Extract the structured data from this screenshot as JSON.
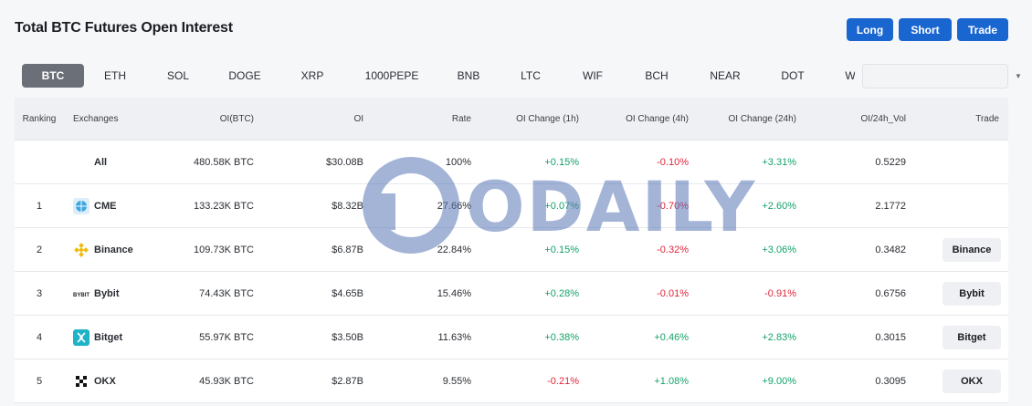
{
  "page": {
    "title": "Total BTC Futures Open Interest"
  },
  "actions": {
    "long": "Long",
    "short": "Short",
    "trade": "Trade"
  },
  "tabs": [
    "BTC",
    "ETH",
    "SOL",
    "DOGE",
    "XRP",
    "1000PEPE",
    "BNB",
    "LTC",
    "WIF",
    "BCH",
    "NEAR",
    "DOT",
    "W"
  ],
  "active_tab": "BTC",
  "search": {
    "value": "",
    "placeholder": ""
  },
  "columns": {
    "ranking": "Ranking",
    "exchanges": "Exchanges",
    "oi_btc": "OI(BTC)",
    "oi": "OI",
    "rate": "Rate",
    "oi_1h": "OI Change (1h)",
    "oi_4h": "OI Change (4h)",
    "oi_24h": "OI Change (24h)",
    "oi_vol": "OI/24h_Vol",
    "trade": "Trade"
  },
  "rows": [
    {
      "rank": "",
      "exchange": "All",
      "oi_btc": "480.58K BTC",
      "oi": "$30.08B",
      "rate": "100%",
      "oi_1h": "+0.15%",
      "oi_4h": "-0.10%",
      "oi_24h": "+3.31%",
      "oi_vol": "0.5229",
      "trade": "",
      "logo": ""
    },
    {
      "rank": "1",
      "exchange": "CME",
      "oi_btc": "133.23K BTC",
      "oi": "$8.32B",
      "rate": "27.66%",
      "oi_1h": "+0.07%",
      "oi_4h": "-0.70%",
      "oi_24h": "+2.60%",
      "oi_vol": "2.1772",
      "trade": "",
      "logo": "cme-icon"
    },
    {
      "rank": "2",
      "exchange": "Binance",
      "oi_btc": "109.73K BTC",
      "oi": "$6.87B",
      "rate": "22.84%",
      "oi_1h": "+0.15%",
      "oi_4h": "-0.32%",
      "oi_24h": "+3.06%",
      "oi_vol": "0.3482",
      "trade": "Binance",
      "logo": "binance-icon"
    },
    {
      "rank": "3",
      "exchange": "Bybit",
      "oi_btc": "74.43K BTC",
      "oi": "$4.65B",
      "rate": "15.46%",
      "oi_1h": "+0.28%",
      "oi_4h": "-0.01%",
      "oi_24h": "-0.91%",
      "oi_vol": "0.6756",
      "trade": "Bybit",
      "logo": "bybit-icon"
    },
    {
      "rank": "4",
      "exchange": "Bitget",
      "oi_btc": "55.97K BTC",
      "oi": "$3.50B",
      "rate": "11.63%",
      "oi_1h": "+0.38%",
      "oi_4h": "+0.46%",
      "oi_24h": "+2.83%",
      "oi_vol": "0.3015",
      "trade": "Bitget",
      "logo": "bitget-icon"
    },
    {
      "rank": "5",
      "exchange": "OKX",
      "oi_btc": "45.93K BTC",
      "oi": "$2.87B",
      "rate": "9.55%",
      "oi_1h": "-0.21%",
      "oi_4h": "+1.08%",
      "oi_24h": "+9.00%",
      "oi_vol": "0.3095",
      "trade": "OKX",
      "logo": "okx-icon"
    }
  ],
  "colors": {
    "accent": "#1a66d1",
    "positive": "#15a26a",
    "negative": "#e0263b",
    "active_tab": "#6b6f78"
  },
  "watermark": {
    "text": "ODAILY"
  }
}
